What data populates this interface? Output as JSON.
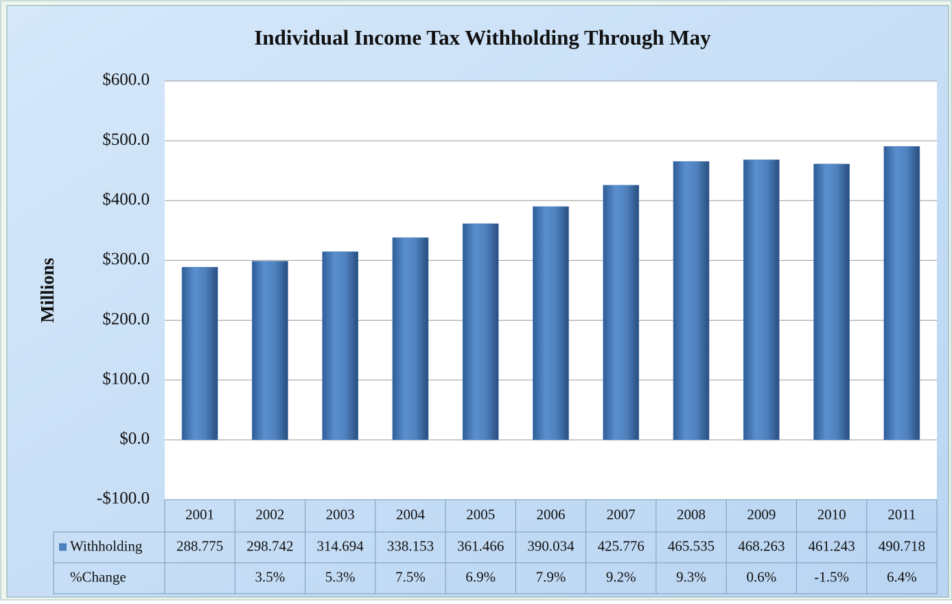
{
  "chart_data": {
    "type": "bar",
    "title": "Individual Income Tax Withholding Through May",
    "y_label": "Millions",
    "categories": [
      "2001",
      "2002",
      "2003",
      "2004",
      "2005",
      "2006",
      "2007",
      "2008",
      "2009",
      "2010",
      "2011"
    ],
    "series": [
      {
        "name": "Withholding",
        "color": "#4f81bd",
        "values": [
          288.775,
          298.742,
          314.694,
          338.153,
          361.466,
          390.034,
          425.776,
          465.535,
          468.263,
          461.243,
          490.718
        ]
      }
    ],
    "ylim": [
      -100,
      600
    ],
    "yticks": [
      {
        "value": -100,
        "label": "-$100.0"
      },
      {
        "value": 0,
        "label": "$0.0"
      },
      {
        "value": 100,
        "label": "$100.0"
      },
      {
        "value": 200,
        "label": "$200.0"
      },
      {
        "value": 300,
        "label": "$300.0"
      },
      {
        "value": 400,
        "label": "$400.0"
      },
      {
        "value": 500,
        "label": "$500.0"
      },
      {
        "value": 600,
        "label": "$600.0"
      }
    ],
    "grid": true,
    "table_rows": [
      {
        "name": "%Change",
        "cells": [
          null,
          "3.5%",
          "5.3%",
          "7.5%",
          "6.9%",
          "7.9%",
          "9.2%",
          "9.3%",
          "0.6%",
          "-1.5%",
          "6.4%"
        ]
      }
    ]
  }
}
